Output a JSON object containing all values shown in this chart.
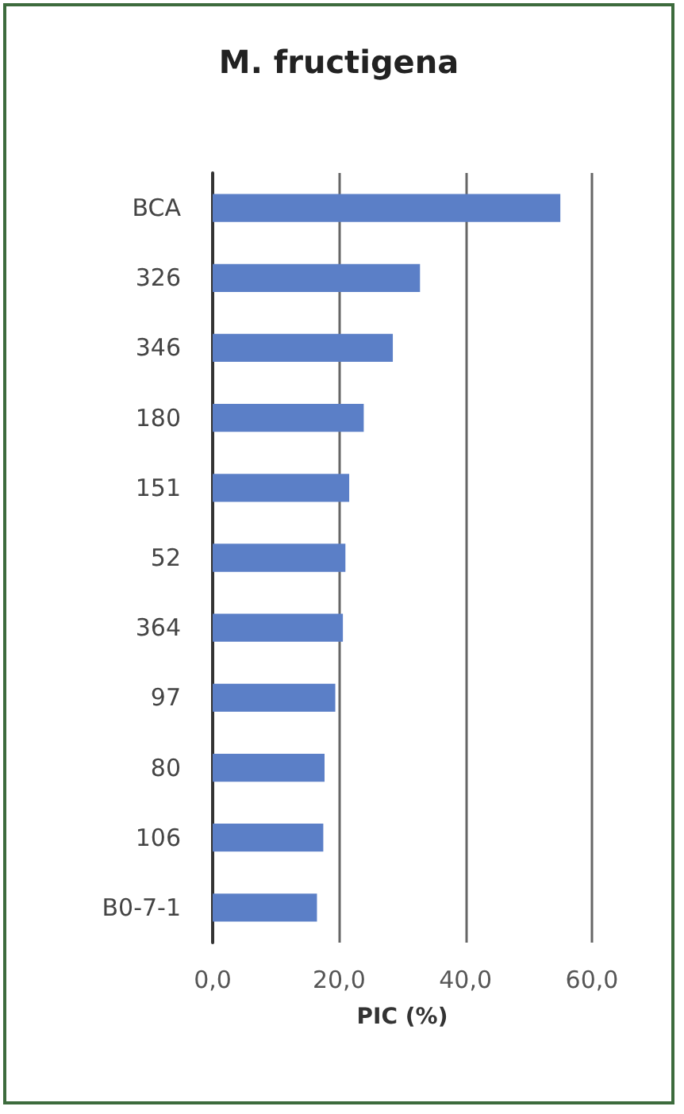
{
  "chart_data": {
    "type": "bar",
    "orientation": "horizontal",
    "title": "M. fructigena",
    "xlabel": "PIC (%)",
    "categories": [
      "BCA",
      "326",
      "346",
      "180",
      "151",
      "52",
      "364",
      "97",
      "80",
      "106",
      "B0-7-1"
    ],
    "values": [
      55.0,
      32.8,
      28.5,
      23.9,
      21.6,
      21.0,
      20.6,
      19.4,
      17.7,
      17.5,
      16.5
    ],
    "color": "#5b7fc7",
    "xlim": [
      0,
      60
    ],
    "xticks": [
      {
        "value": 0,
        "label": "0,0"
      },
      {
        "value": 20,
        "label": "20,0"
      },
      {
        "value": 40,
        "label": "40,0"
      },
      {
        "value": 60,
        "label": "60,0"
      }
    ],
    "grid": "x"
  }
}
